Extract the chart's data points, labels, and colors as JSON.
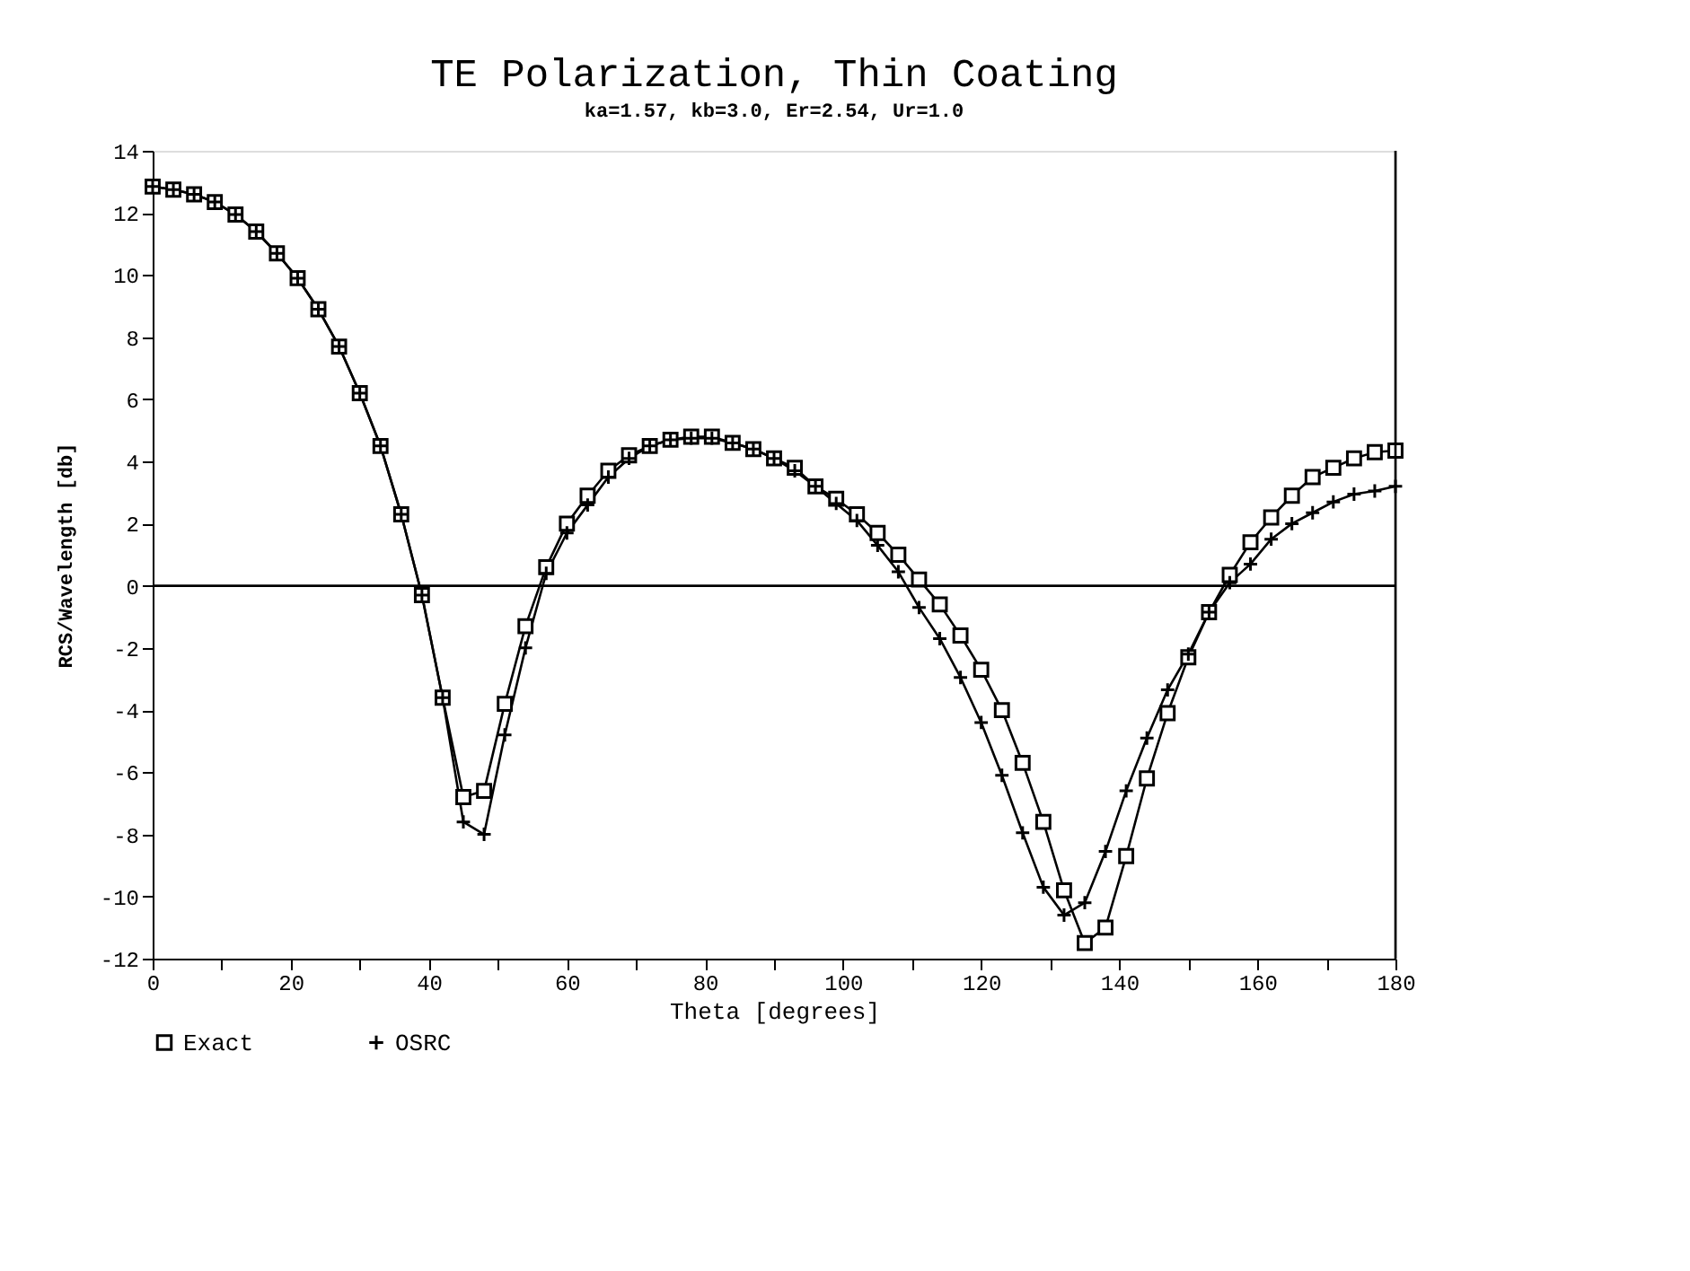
{
  "chart_data": {
    "type": "line",
    "title": "TE Polarization, Thin Coating",
    "subtitle": "ka=1.57, kb=3.0, Er=2.54, Ur=1.0",
    "xlabel": "Theta [degrees]",
    "ylabel": "RCS/Wavelength [db]",
    "x": [
      0,
      3,
      6,
      9,
      12,
      15,
      18,
      21,
      24,
      27,
      30,
      33,
      36,
      39,
      42,
      45,
      48,
      51,
      54,
      57,
      60,
      63,
      66,
      69,
      72,
      75,
      78,
      81,
      84,
      87,
      90,
      93,
      96,
      99,
      102,
      105,
      108,
      111,
      114,
      117,
      120,
      123,
      126,
      129,
      132,
      135,
      138,
      141,
      144,
      147,
      150,
      153,
      156,
      159,
      162,
      165,
      168,
      171,
      174,
      177,
      180
    ],
    "series": [
      {
        "name": "Exact",
        "color": "#000000",
        "marker": "square",
        "values": [
          12.85,
          12.75,
          12.6,
          12.35,
          11.95,
          11.4,
          10.7,
          9.9,
          8.9,
          7.7,
          6.2,
          4.5,
          2.3,
          -0.3,
          -3.6,
          -6.8,
          -6.6,
          -3.8,
          -1.3,
          0.6,
          2.0,
          2.9,
          3.7,
          4.2,
          4.5,
          4.7,
          4.8,
          4.8,
          4.6,
          4.4,
          4.1,
          3.8,
          3.2,
          2.8,
          2.3,
          1.7,
          1.0,
          0.2,
          -0.6,
          -1.6,
          -2.7,
          -4.0,
          -5.7,
          -7.6,
          -9.8,
          -11.5,
          -11.0,
          -8.7,
          -6.2,
          -4.1,
          -2.3,
          -0.85,
          0.35,
          1.4,
          2.2,
          2.9,
          3.5,
          3.8,
          4.1,
          4.3,
          4.35
        ]
      },
      {
        "name": "OSRC",
        "color": "#000000",
        "marker": "cross",
        "values": [
          12.85,
          12.75,
          12.6,
          12.35,
          11.95,
          11.4,
          10.7,
          9.9,
          8.9,
          7.7,
          6.2,
          4.5,
          2.3,
          -0.3,
          -3.6,
          -7.6,
          -8.0,
          -4.8,
          -2.0,
          0.4,
          1.7,
          2.6,
          3.5,
          4.1,
          4.5,
          4.7,
          4.75,
          4.75,
          4.6,
          4.4,
          4.1,
          3.7,
          3.2,
          2.65,
          2.1,
          1.3,
          0.45,
          -0.7,
          -1.7,
          -2.95,
          -4.4,
          -6.1,
          -7.95,
          -9.7,
          -10.6,
          -10.2,
          -8.55,
          -6.6,
          -4.9,
          -3.35,
          -2.2,
          -0.85,
          0.1,
          0.7,
          1.5,
          2.0,
          2.35,
          2.7,
          2.95,
          3.05,
          3.2
        ]
      }
    ],
    "xlim": [
      0,
      180
    ],
    "xticks": [
      0,
      {
        "value": 10,
        "label": null
      },
      20,
      {
        "value": 30,
        "label": null
      },
      40,
      {
        "value": 50,
        "label": null
      },
      60,
      {
        "value": 70,
        "label": null
      },
      80,
      {
        "value": 90,
        "label": null
      },
      100,
      {
        "value": 110,
        "label": null
      },
      120,
      {
        "value": 130,
        "label": null
      },
      140,
      {
        "value": 150,
        "label": null
      },
      160,
      {
        "value": 170,
        "label": null
      },
      180
    ],
    "ylim": [
      -12,
      14
    ],
    "yticks": [
      -12,
      -10,
      -8,
      -6,
      -4,
      -2,
      0,
      2,
      4,
      6,
      8,
      10,
      12,
      14
    ],
    "ref_lines": [
      {
        "axis": "y",
        "value": 0,
        "color": "#000000"
      }
    ],
    "grid": false,
    "legend": "bottom",
    "line_style": "solid"
  }
}
